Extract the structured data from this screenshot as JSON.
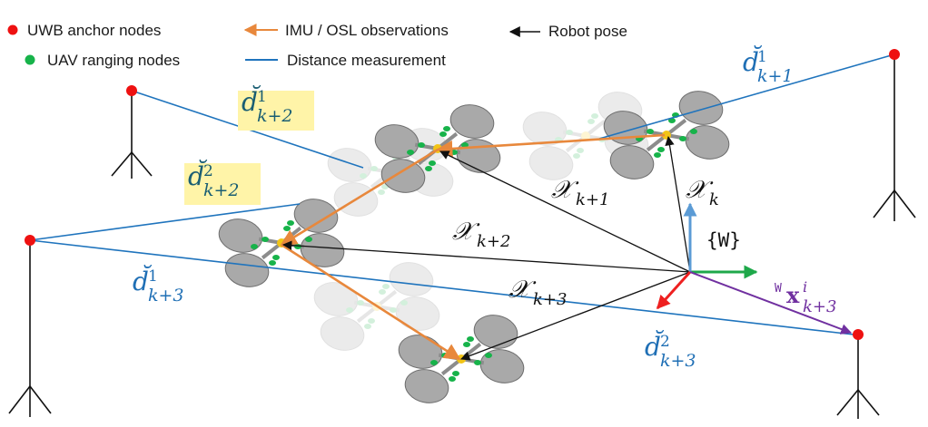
{
  "legend": {
    "anchor": "UWB anchor nodes",
    "ranging": "UAV ranging nodes",
    "imu": "IMU / OSL observations",
    "distance": "Distance measurement",
    "pose": "Robot pose"
  },
  "labels": {
    "d_k1_1": {
      "base": "d̆",
      "sup": "1",
      "sub": "k+1"
    },
    "d_k2_1": {
      "base": "d̆",
      "sup": "1",
      "sub": "k+2"
    },
    "d_k2_2": {
      "base": "d̆",
      "sup": "2",
      "sub": "k+2"
    },
    "d_k3_1": {
      "base": "d̆",
      "sup": "1",
      "sub": "k+3"
    },
    "d_k3_2": {
      "base": "d̆",
      "sup": "2",
      "sub": "k+3"
    },
    "x_k": {
      "base": "𝒳",
      "sub": "k"
    },
    "x_k1": {
      "base": "𝒳",
      "sub": "k+1"
    },
    "x_k2": {
      "base": "𝒳",
      "sub": "k+2"
    },
    "x_k3": {
      "base": "𝒳",
      "sub": "k+3"
    },
    "world_frame": "{W}",
    "anchor_vec": {
      "pre": "W",
      "base": "x",
      "sup": "i",
      "sub": "k+3"
    }
  },
  "colors": {
    "anchor": "#ee1111",
    "ranging": "#17b34a",
    "imu": "#e8883c",
    "distance": "#1f74bd",
    "pose": "#111111",
    "frame_x": "#1ea84a",
    "frame_y": "#5b9bd5",
    "frame_z": "#ee2020",
    "anchor_vec": "#7030a0",
    "highlight": "#fff4a8",
    "blue_label": "#1f6fb5",
    "teal_label": "#1a5e73"
  }
}
